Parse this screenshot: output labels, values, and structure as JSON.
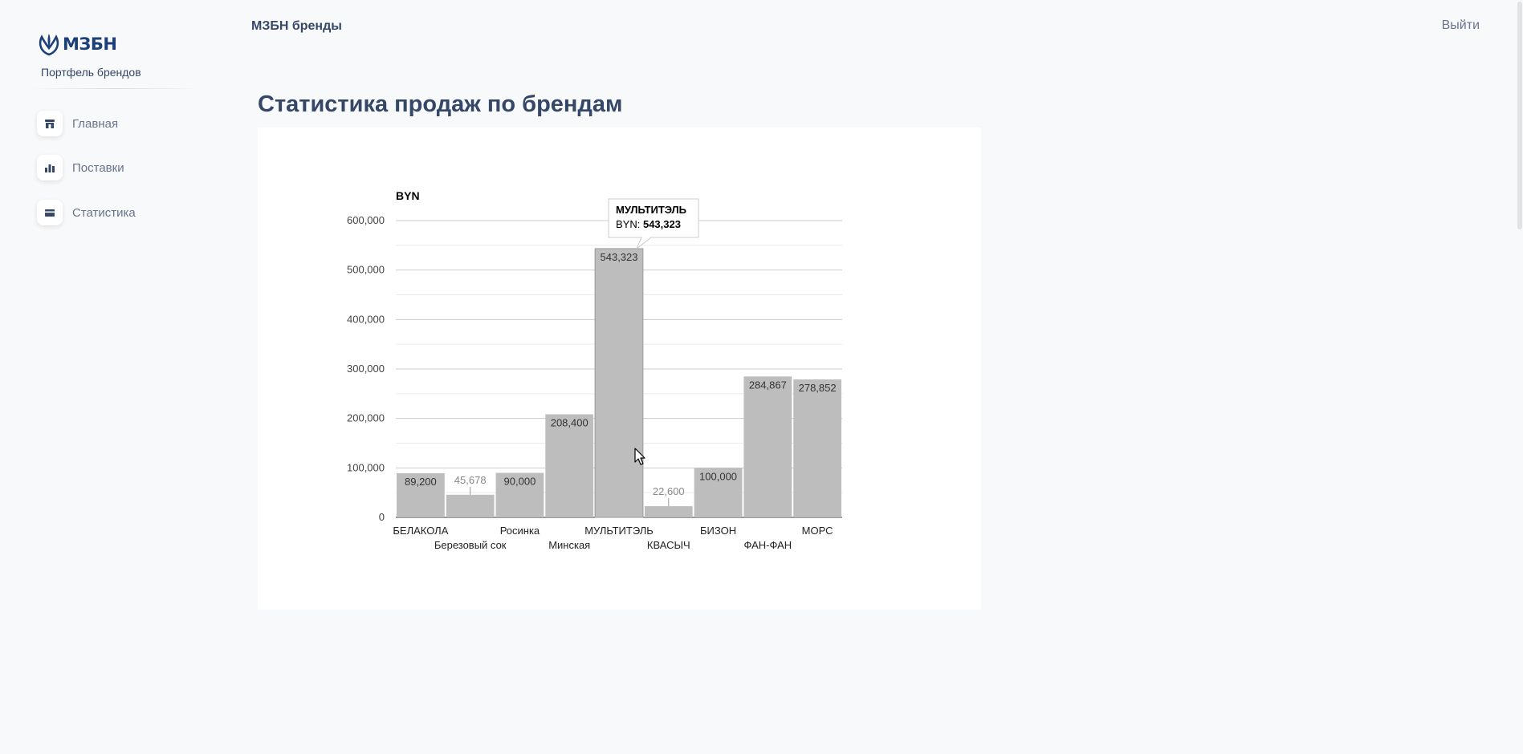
{
  "sidebar": {
    "logo_text": "МЗБН",
    "subtitle": "Портфель брендов",
    "items": [
      {
        "label": "Главная",
        "icon": "shop-icon"
      },
      {
        "label": "Поставки",
        "icon": "chart-icon"
      },
      {
        "label": "Статистика",
        "icon": "card-icon"
      }
    ]
  },
  "header": {
    "title": "МЗБН бренды",
    "logout": "Выйти"
  },
  "page": {
    "title": "Статистика продаж по брендам"
  },
  "chart_data": {
    "type": "bar",
    "ylabel": "BYN",
    "categories": [
      "БЕЛАКОЛА",
      "Березовый сок",
      "Росинка",
      "Минская",
      "МУЛЬТИТЭЛЬ",
      "КВАСЫЧ",
      "БИЗОН",
      "ФАН-ФАН",
      "МОРС"
    ],
    "series": [
      {
        "values": [
          89200,
          45678,
          90000,
          208400,
          543323,
          22600,
          100000,
          284867,
          278852
        ]
      }
    ],
    "data_labels": [
      "89,200",
      "45,678",
      "90,000",
      "208,400",
      "543,323",
      "22,600",
      "100,000",
      "284,867",
      "278,852"
    ],
    "yticks": [
      0,
      100000,
      200000,
      300000,
      400000,
      500000,
      600000
    ],
    "ytick_labels": [
      "0",
      "100,000",
      "200,000",
      "300,000",
      "400,000",
      "500,000",
      "600,000"
    ],
    "ylim": [
      0,
      600000
    ],
    "grid": true,
    "bar_color": "#bdbdbd",
    "tooltip": {
      "title": "МУЛЬТИТЭЛЬ",
      "series_label": "BYN: ",
      "value": "543,323"
    }
  }
}
